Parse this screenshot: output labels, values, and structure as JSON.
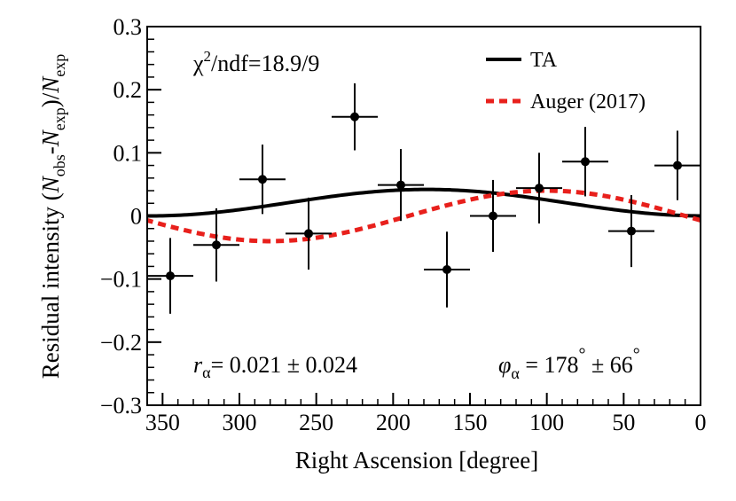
{
  "chart_data": {
    "type": "scatter",
    "xlabel": "Right Ascension [degree]",
    "ylabel_parts": {
      "main": "Residual intensity (",
      "n1": "N",
      "sub1": "obs",
      "mid": "-",
      "n2": "N",
      "sub2": "exp",
      "close": ")/",
      "n3": "N",
      "sub3": "exp"
    },
    "xlim": [
      360,
      0
    ],
    "ylim": [
      -0.3,
      0.3
    ],
    "x_reversed": true,
    "x_ticks": [
      350,
      300,
      250,
      200,
      150,
      100,
      50,
      0
    ],
    "x_tick_labels": [
      "350",
      "300",
      "250",
      "200",
      "150",
      "100",
      "50",
      "0"
    ],
    "y_ticks": [
      -0.3,
      -0.2,
      -0.1,
      0,
      0.1,
      0.2,
      0.3
    ],
    "y_tick_labels": [
      "−0.3",
      "−0.2",
      "−0.1",
      "0",
      "0.1",
      "0.2",
      "0.3"
    ],
    "grid": false,
    "legend_position": "top-right",
    "points": [
      {
        "x": 345,
        "y": -0.095,
        "xerr": 15,
        "yerr": 0.06
      },
      {
        "x": 315,
        "y": -0.046,
        "xerr": 15,
        "yerr": 0.058
      },
      {
        "x": 285,
        "y": 0.058,
        "xerr": 15,
        "yerr": 0.055
      },
      {
        "x": 255,
        "y": -0.028,
        "xerr": 15,
        "yerr": 0.057
      },
      {
        "x": 225,
        "y": 0.157,
        "xerr": 15,
        "yerr": 0.053
      },
      {
        "x": 195,
        "y": 0.049,
        "xerr": 15,
        "yerr": 0.057
      },
      {
        "x": 165,
        "y": -0.085,
        "xerr": 15,
        "yerr": 0.06
      },
      {
        "x": 135,
        "y": 0.0,
        "xerr": 15,
        "yerr": 0.057
      },
      {
        "x": 105,
        "y": 0.044,
        "xerr": 15,
        "yerr": 0.056
      },
      {
        "x": 75,
        "y": 0.086,
        "xerr": 15,
        "yerr": 0.055
      },
      {
        "x": 45,
        "y": -0.024,
        "xerr": 15,
        "yerr": 0.057
      },
      {
        "x": 15,
        "y": 0.08,
        "xerr": 15,
        "yerr": 0.055
      }
    ],
    "series": [
      {
        "name": "TA",
        "style": "solid",
        "color": "#000000",
        "amplitude": 0.021,
        "phase_deg": 178
      },
      {
        "name": "Auger (2017)",
        "style": "dashed",
        "color": "#e8201c",
        "amplitude": 0.04,
        "phase_deg": 100
      }
    ],
    "annotations": {
      "chi2_sym": "χ",
      "chi2_sup": "2",
      "chi2_rest": "/ndf=18.9/9",
      "r_sym": "r",
      "r_sub": "α",
      "r_value": "= 0.021 ± 0.024",
      "phi_sym": "φ",
      "phi_sub": "α",
      "phi_eq": " = 178",
      "phi_deg1": "°",
      "phi_pm": " ± 66",
      "phi_deg2": "°"
    }
  }
}
